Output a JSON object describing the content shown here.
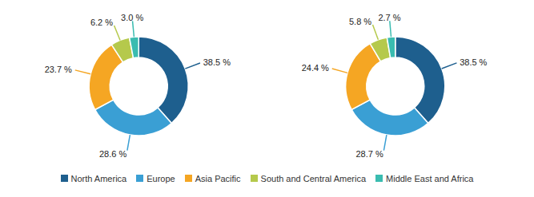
{
  "chart_data": [
    {
      "type": "pie",
      "categories": [
        "North America",
        "Europe",
        "Asia Pacific",
        "South and Central America",
        "Middle East and Africa"
      ],
      "values": [
        38.5,
        28.6,
        23.7,
        6.2,
        3.0
      ],
      "value_labels": [
        "38.5 %",
        "28.6 %",
        "23.7 %",
        "6.2 %",
        "3.0 %"
      ],
      "colors": [
        "#1e5f8e",
        "#3a9fd4",
        "#f5a623",
        "#b5c94c",
        "#3abcb0"
      ],
      "data_labels": true,
      "legend": "bottom"
    },
    {
      "type": "pie",
      "categories": [
        "North America",
        "Europe",
        "Asia Pacific",
        "South and Central America",
        "Middle East and Africa"
      ],
      "values": [
        38.5,
        28.7,
        24.4,
        5.8,
        2.7
      ],
      "value_labels": [
        "38.5 %",
        "28.7 %",
        "24.4 %",
        "5.8 %",
        "2.7 %"
      ],
      "colors": [
        "#1e5f8e",
        "#3a9fd4",
        "#f5a623",
        "#b5c94c",
        "#3abcb0"
      ],
      "data_labels": true
    }
  ]
}
